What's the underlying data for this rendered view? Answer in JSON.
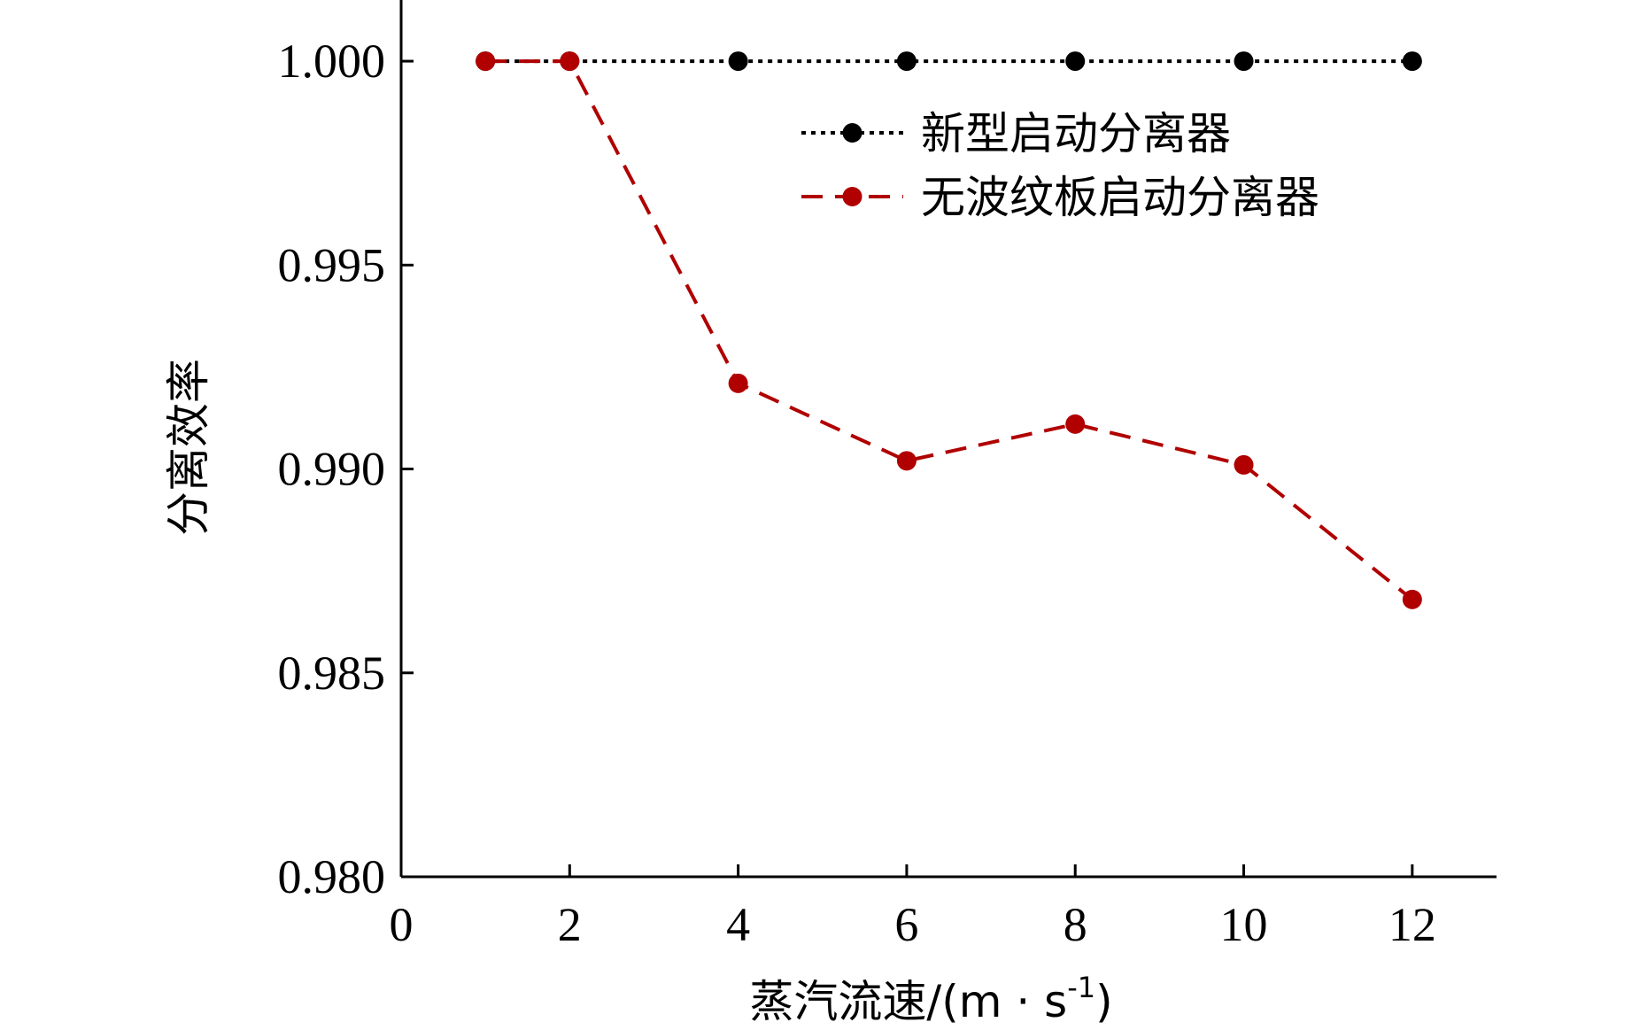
{
  "chart_data": {
    "type": "line",
    "title": "",
    "xlabel": "蒸汽流速/(m · s",
    "xlabel_sup": "-1",
    "xlabel_close": ")",
    "ylabel": "分离效率",
    "xlim": [
      0,
      13
    ],
    "ylim": [
      0.98,
      1.0015
    ],
    "x_ticks": [
      0,
      2,
      4,
      6,
      8,
      10,
      12
    ],
    "x_tick_labels": [
      "0",
      "2",
      "4",
      "6",
      "8",
      "10",
      "12"
    ],
    "y_ticks": [
      0.98,
      0.985,
      0.99,
      0.995,
      1.0
    ],
    "y_tick_labels": [
      "0.980",
      "0.985",
      "0.990",
      "0.995",
      "1.000"
    ],
    "grid": false,
    "legend_position": "top-right",
    "series": [
      {
        "name": "新型启动分离器",
        "color": "#000000",
        "line_style": "dotted",
        "x": [
          1,
          2,
          4,
          6,
          8,
          10,
          12
        ],
        "y": [
          1.0,
          1.0,
          1.0,
          1.0,
          1.0,
          1.0,
          1.0
        ]
      },
      {
        "name": "无波纹板启动分离器",
        "color": "#b00000",
        "line_style": "dashed",
        "x": [
          1,
          2,
          4,
          6,
          8,
          10,
          12
        ],
        "y": [
          1.0,
          1.0,
          0.9921,
          0.9902,
          0.9911,
          0.9901,
          0.9868
        ]
      }
    ]
  }
}
